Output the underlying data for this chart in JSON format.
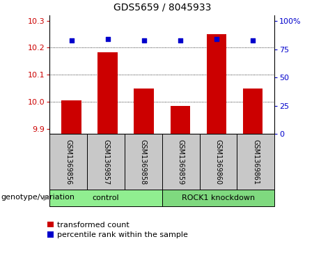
{
  "title": "GDS5659 / 8045933",
  "samples": [
    "GSM1369856",
    "GSM1369857",
    "GSM1369858",
    "GSM1369859",
    "GSM1369860",
    "GSM1369861"
  ],
  "red_values": [
    10.005,
    10.183,
    10.048,
    9.983,
    10.25,
    10.048
  ],
  "blue_values": [
    83,
    84,
    83,
    83,
    84,
    83
  ],
  "ylim_left": [
    9.88,
    10.32
  ],
  "ylim_right": [
    0,
    105
  ],
  "yticks_left": [
    9.9,
    10.0,
    10.1,
    10.2,
    10.3
  ],
  "yticks_right": [
    0,
    25,
    50,
    75,
    100
  ],
  "ytick_labels_right": [
    "0",
    "25",
    "50",
    "75",
    "100%"
  ],
  "group_labels": [
    "control",
    "ROCK1 knockdown"
  ],
  "group_colors": [
    "#90EE90",
    "#7FD97F"
  ],
  "group_sizes": [
    3,
    3
  ],
  "bar_color": "#CC0000",
  "dot_color": "#0000CC",
  "bar_bottom": 9.88,
  "xlabel_color": "#CC0000",
  "ylabel_right_color": "#0000CC",
  "legend_red_label": "transformed count",
  "legend_blue_label": "percentile rank within the sample",
  "genotype_label": "genotype/variation",
  "background_color": "#FFFFFF",
  "plot_bg_color": "#FFFFFF",
  "tick_label_area_color": "#C8C8C8",
  "grid_dotted_at": [
    10.0,
    10.1,
    10.2
  ],
  "fontsize_title": 10,
  "fontsize_ticks": 8,
  "fontsize_sample": 7,
  "fontsize_legend": 8,
  "fontsize_genotype": 8
}
